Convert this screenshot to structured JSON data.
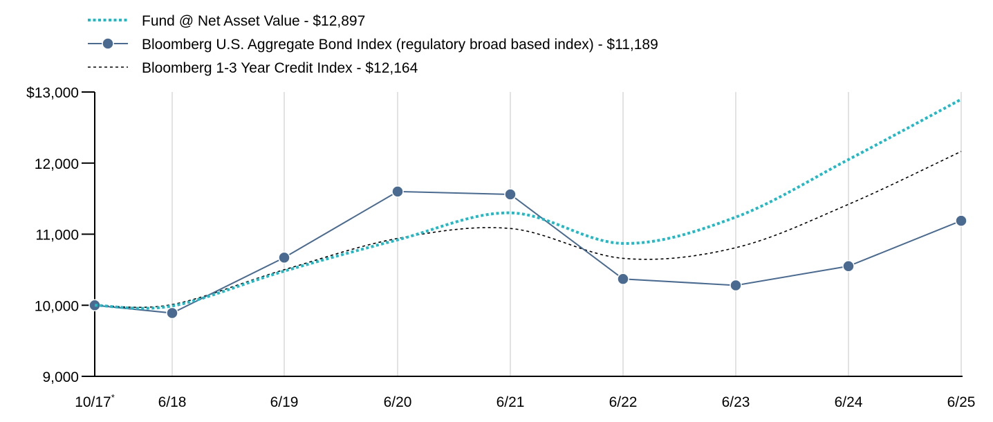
{
  "chart_data": {
    "type": "line",
    "categories": [
      "10/17*",
      "6/18",
      "6/19",
      "6/20",
      "6/21",
      "6/22",
      "6/23",
      "6/24",
      "6/25"
    ],
    "ylim": [
      9000,
      13000
    ],
    "yticks": [
      "$13,000",
      "12,000",
      "11,000",
      "10,000",
      "9,000"
    ],
    "ytick_values": [
      13000,
      12000,
      11000,
      10000,
      9000
    ],
    "grid": "vertical",
    "legend_position": "top-left",
    "series": [
      {
        "name": "Fund @ Net Asset Value - $12,897",
        "style": "dotted-thick",
        "color": "#22B8C4",
        "values": [
          10000,
          9990,
          10480,
          10920,
          11300,
          10870,
          11240,
          12050,
          12897
        ]
      },
      {
        "name": "Bloomberg U.S. Aggregate Bond Index (regulatory broad based index) - $11,189",
        "style": "solid-markers",
        "color": "#4A6A8F",
        "values": [
          10000,
          9890,
          10670,
          11600,
          11560,
          10370,
          10280,
          10550,
          11189
        ]
      },
      {
        "name": "Bloomberg 1-3 Year Credit Index - $12,164",
        "style": "dotted-thin",
        "color": "#000000",
        "values": [
          10000,
          10010,
          10500,
          10940,
          11080,
          10660,
          10810,
          11420,
          12164
        ]
      }
    ]
  }
}
